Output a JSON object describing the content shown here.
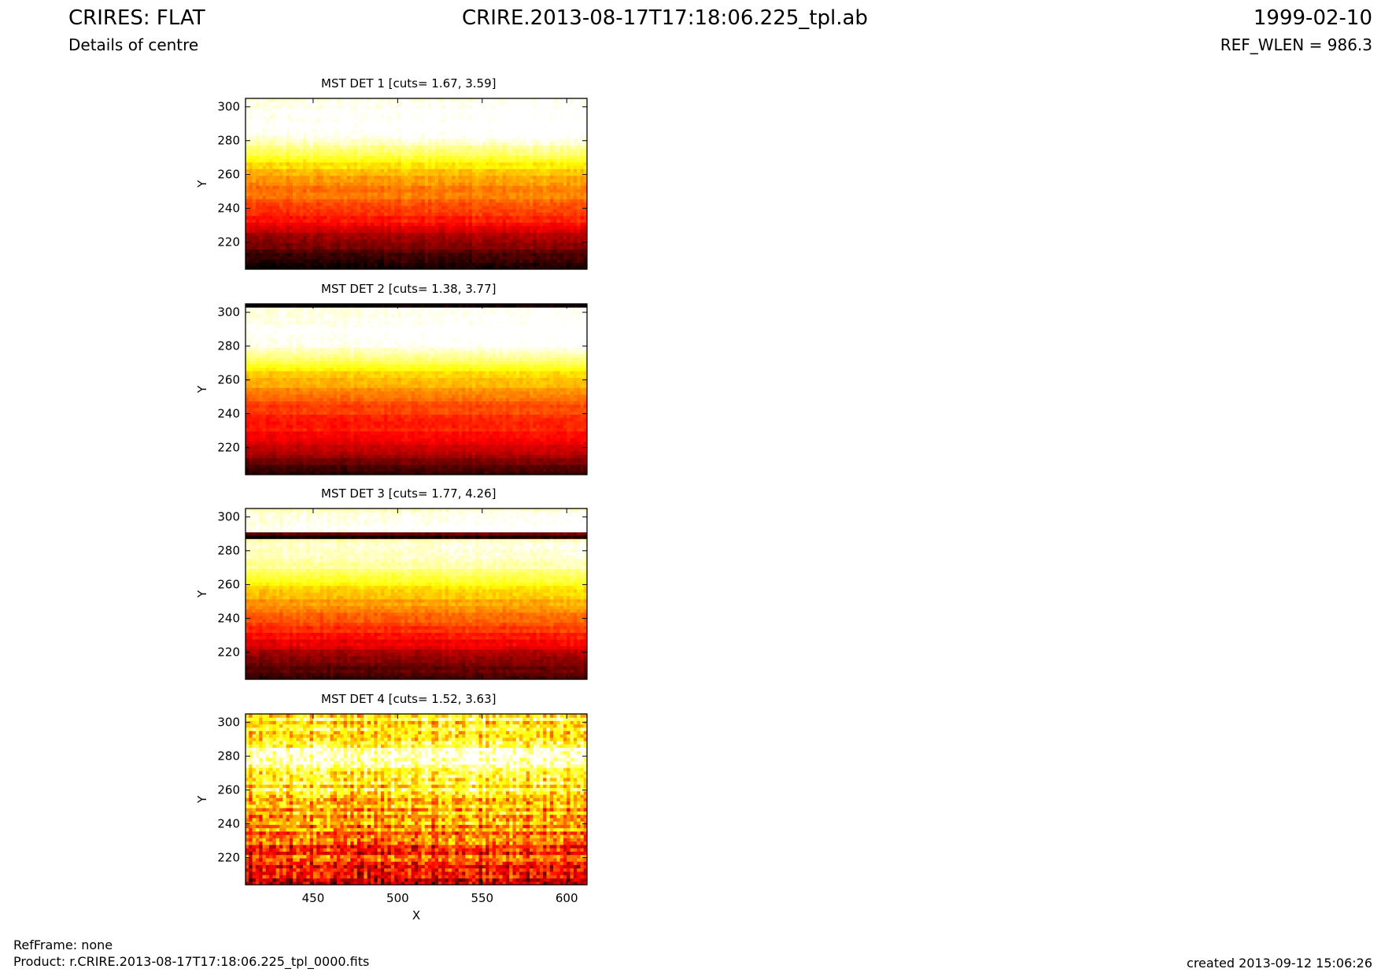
{
  "header": {
    "title": "CRIRES: FLAT",
    "subtitle": "Details of centre",
    "file": "CRIRE.2013-08-17T17:18:06.225_tpl.ab",
    "date": "1999-02-10",
    "ref_wlen": "REF_WLEN = 986.3"
  },
  "footer": {
    "refframe": "RefFrame: none",
    "product": "Product: r.CRIRE.2013-08-17T17:18:06.225_tpl_0000.fits",
    "created": "created 2013-09-12 15:06:26"
  },
  "colors": {
    "colormap": "hot",
    "low": "#000000",
    "mid": "#e80000",
    "high": "#ffff00",
    "top": "#ffffff"
  },
  "chart_data": [
    {
      "type": "heatmap",
      "title": "MST DET 1 [cuts= 1.67, 3.59]",
      "ylabel": "Y",
      "xlabel": "",
      "xlim": [
        410,
        612
      ],
      "ylim": [
        204,
        305
      ],
      "yticks": [
        220,
        240,
        260,
        280,
        300
      ],
      "xticks": [],
      "show_xticklabels": false,
      "profile": [
        {
          "y": 204,
          "level": 0.02
        },
        {
          "y": 212,
          "level": 0.06
        },
        {
          "y": 218,
          "level": 0.18
        },
        {
          "y": 225,
          "level": 0.24
        },
        {
          "y": 232,
          "level": 0.38
        },
        {
          "y": 240,
          "level": 0.44
        },
        {
          "y": 248,
          "level": 0.52
        },
        {
          "y": 255,
          "level": 0.55
        },
        {
          "y": 262,
          "level": 0.62
        },
        {
          "y": 268,
          "level": 0.72
        },
        {
          "y": 274,
          "level": 0.82
        },
        {
          "y": 279,
          "level": 0.93
        },
        {
          "y": 285,
          "level": 0.99
        },
        {
          "y": 305,
          "level": 0.97
        }
      ],
      "noise": 0.06
    },
    {
      "type": "heatmap",
      "title": "MST DET 2 [cuts= 1.38, 3.77]",
      "ylabel": "Y",
      "xlabel": "",
      "xlim": [
        410,
        612
      ],
      "ylim": [
        204,
        305
      ],
      "yticks": [
        220,
        240,
        260,
        280,
        300
      ],
      "xticks": [],
      "show_xticklabels": false,
      "profile": [
        {
          "y": 204,
          "level": 0.04
        },
        {
          "y": 212,
          "level": 0.14
        },
        {
          "y": 220,
          "level": 0.28
        },
        {
          "y": 230,
          "level": 0.38
        },
        {
          "y": 240,
          "level": 0.42
        },
        {
          "y": 248,
          "level": 0.48
        },
        {
          "y": 256,
          "level": 0.58
        },
        {
          "y": 264,
          "level": 0.66
        },
        {
          "y": 270,
          "level": 0.78
        },
        {
          "y": 276,
          "level": 0.9
        },
        {
          "y": 282,
          "level": 0.99
        },
        {
          "y": 302,
          "level": 0.98
        },
        {
          "y": 303,
          "level": 0.0
        },
        {
          "y": 305,
          "level": 0.0
        }
      ],
      "noise": 0.05
    },
    {
      "type": "heatmap",
      "title": "MST DET 3 [cuts= 1.77, 4.26]",
      "ylabel": "Y",
      "xlabel": "",
      "xlim": [
        410,
        612
      ],
      "ylim": [
        204,
        305
      ],
      "yticks": [
        220,
        240,
        260,
        280,
        300
      ],
      "xticks": [],
      "show_xticklabels": false,
      "profile": [
        {
          "y": 204,
          "level": 0.04
        },
        {
          "y": 214,
          "level": 0.16
        },
        {
          "y": 224,
          "level": 0.3
        },
        {
          "y": 236,
          "level": 0.44
        },
        {
          "y": 246,
          "level": 0.54
        },
        {
          "y": 254,
          "level": 0.62
        },
        {
          "y": 262,
          "level": 0.74
        },
        {
          "y": 270,
          "level": 0.86
        },
        {
          "y": 280,
          "level": 0.95
        },
        {
          "y": 287,
          "level": 0.9
        },
        {
          "y": 288,
          "level": 0.0
        },
        {
          "y": 290,
          "level": 0.0
        },
        {
          "y": 291,
          "level": 0.99
        },
        {
          "y": 296,
          "level": 0.99
        },
        {
          "y": 305,
          "level": 0.92
        }
      ],
      "noise": 0.06
    },
    {
      "type": "heatmap",
      "title": "MST DET 4 [cuts= 1.52, 3.63]",
      "ylabel": "Y",
      "xlabel": "X",
      "xlim": [
        410,
        612
      ],
      "ylim": [
        204,
        305
      ],
      "yticks": [
        220,
        240,
        260,
        280,
        300
      ],
      "xticks": [
        450,
        500,
        550,
        600
      ],
      "show_xticklabels": true,
      "profile": [
        {
          "y": 204,
          "level": 0.32
        },
        {
          "y": 220,
          "level": 0.42
        },
        {
          "y": 240,
          "level": 0.52
        },
        {
          "y": 256,
          "level": 0.66
        },
        {
          "y": 268,
          "level": 0.78
        },
        {
          "y": 276,
          "level": 0.9
        },
        {
          "y": 279,
          "level": 1.0
        },
        {
          "y": 283,
          "level": 1.0
        },
        {
          "y": 286,
          "level": 0.8
        },
        {
          "y": 294,
          "level": 0.72
        },
        {
          "y": 305,
          "level": 0.68
        }
      ],
      "noise": 0.28
    }
  ]
}
